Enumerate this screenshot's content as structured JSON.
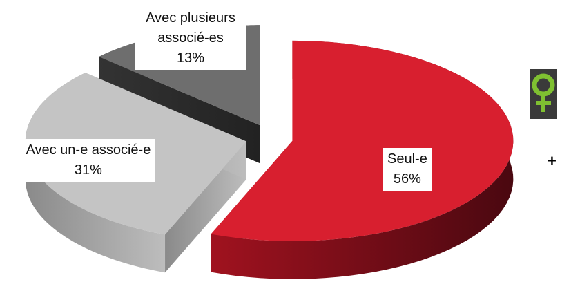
{
  "chart_data": {
    "type": "pie3d",
    "categories": [
      "Seul-e",
      "Avec un-e associé-e",
      "Avec plusieurs associé-es"
    ],
    "values": [
      56,
      31,
      13
    ],
    "value_labels": [
      "56%",
      "31%",
      "13%"
    ],
    "colors": [
      "#d81f2f",
      "#c4c4c4",
      "#6e6e6e"
    ]
  },
  "plus_sign": "+"
}
